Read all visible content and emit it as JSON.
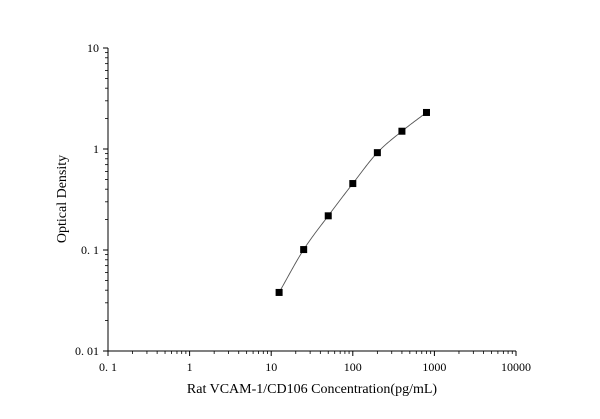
{
  "chart_data": {
    "type": "scatter",
    "title": "",
    "xlabel": "Rat VCAM-1/CD106 Concentration(pg/mL)",
    "ylabel": "Optical Density",
    "x_scale": "log",
    "y_scale": "log",
    "xlim": [
      0.1,
      10000
    ],
    "ylim": [
      0.01,
      10
    ],
    "x_ticks": [
      "0. 1",
      "1",
      "10",
      "100",
      "1000",
      "10000"
    ],
    "y_ticks": [
      "0. 01",
      "0. 1",
      "1",
      "10"
    ],
    "grid": false,
    "legend": "none",
    "fit_curve": true,
    "series": [
      {
        "x": [
          12.5,
          25,
          50,
          100,
          200,
          400,
          800
        ],
        "y": [
          0.038,
          0.101,
          0.218,
          0.455,
          0.92,
          1.5,
          2.3
        ]
      }
    ],
    "marker_color": "#000000",
    "line_color": "#555555"
  }
}
